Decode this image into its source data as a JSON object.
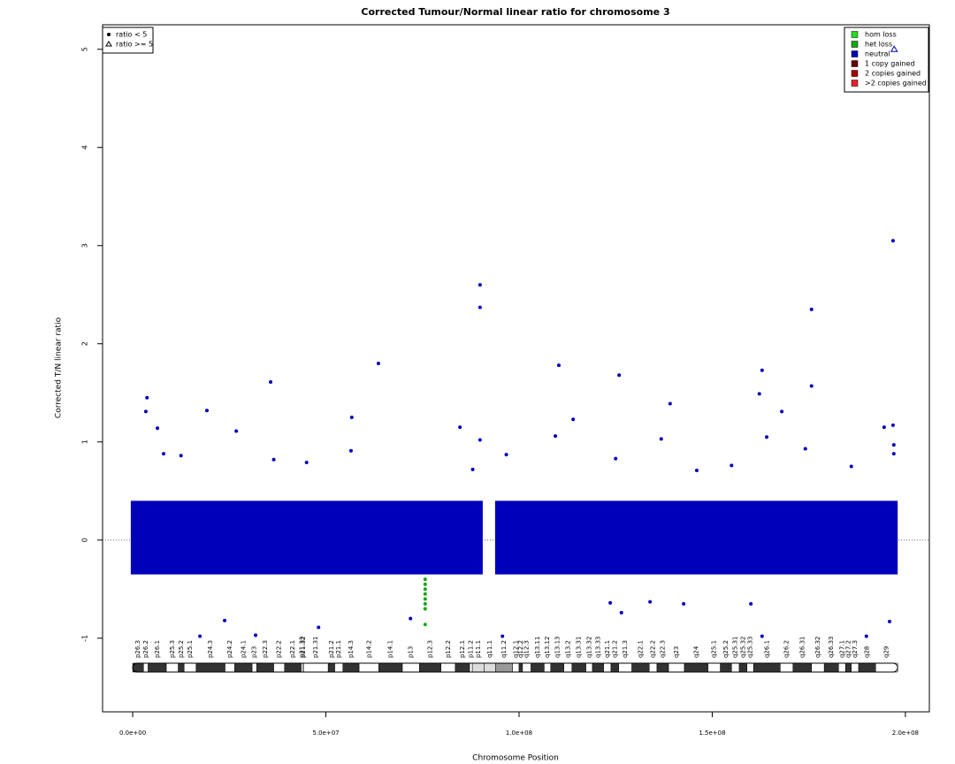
{
  "chart_data": {
    "type": "scatter",
    "title": "Corrected Tumour/Normal linear ratio for chromosome  3",
    "x_label": "Chromosome Position",
    "y_label": "Corrected T/N linear ratio",
    "xlim": [
      -7800000.0,
      206200000.0
    ],
    "ylim": [
      -1.75,
      5.25
    ],
    "xticks": [
      {
        "value": 0,
        "label": "0.0e+00"
      },
      {
        "value": 50000000.0,
        "label": "5.0e+07"
      },
      {
        "value": 100000000.0,
        "label": "1.0e+08"
      },
      {
        "value": 150000000.0,
        "label": "1.5e+08"
      },
      {
        "value": 200000000.0,
        "label": "2.0e+08"
      }
    ],
    "yticks": [
      -1,
      0,
      1,
      2,
      3,
      4,
      5
    ],
    "hline": 0,
    "series": [
      {
        "name": "hom loss",
        "color": "#22dd22",
        "x": [],
        "values": []
      },
      {
        "name": "het loss",
        "color": "#11aa11",
        "x": [
          75700000.0,
          75700000.0,
          75700000.0,
          75700000.0,
          75700000.0,
          75700000.0,
          75700000.0,
          75700000.0
        ],
        "values": [
          -0.4,
          -0.45,
          -0.5,
          -0.55,
          -0.6,
          -0.65,
          -0.7,
          -0.86
        ]
      },
      {
        "name": "neutral",
        "color": "#0000bb",
        "x": [
          3700000.0,
          3400000.0,
          6400000.0,
          35700000.0,
          26800000.0,
          19200000.0,
          56700000.0,
          63600000.0,
          84700000.0,
          89900000.0,
          89900000.0,
          89900000.0,
          110300000.0,
          114000000.0,
          125900000.0,
          139100000.0,
          136800000.0,
          109400000.0,
          175700000.0,
          175700000.0,
          162900000.0,
          162200000.0,
          168000000.0,
          196800000.0,
          196800000.0,
          194500000.0,
          164100000.0,
          174100000.0,
          71900000.0,
          23800000.0,
          48100000.0,
          31800000.0,
          17400000.0,
          95700000.0,
          123600000.0,
          126500000.0,
          133900000.0,
          142600000.0,
          160000000.0,
          162900000.0,
          195900000.0,
          189900000.0,
          8000000.0,
          12500000.0,
          36500000.0,
          45000000.0,
          56500000.0,
          88000000.0,
          96700000.0,
          125000000.0,
          146000000.0,
          155000000.0,
          186000000.0,
          197000000.0,
          197000000.0
        ],
        "values": [
          1.45,
          1.31,
          1.14,
          1.61,
          1.11,
          1.32,
          1.25,
          1.8,
          1.15,
          2.6,
          2.37,
          1.02,
          1.78,
          1.23,
          1.68,
          1.39,
          1.03,
          1.06,
          2.35,
          1.57,
          1.73,
          1.49,
          1.31,
          3.05,
          1.17,
          1.15,
          1.05,
          0.93,
          -0.8,
          -0.82,
          -0.89,
          -0.97,
          -0.98,
          -0.98,
          -0.64,
          -0.74,
          -0.63,
          -0.65,
          -0.65,
          -0.98,
          -0.83,
          -0.98,
          0.88,
          0.86,
          0.82,
          0.79,
          0.91,
          0.72,
          0.87,
          0.83,
          0.71,
          0.76,
          0.75,
          0.97,
          0.88
        ]
      },
      {
        "name": "1 copy gained",
        "color": "#660000",
        "x": [],
        "values": []
      },
      {
        "name": "2 copies gained",
        "color": "#aa0000",
        "x": [],
        "values": []
      },
      {
        "name": ">2 copies gained",
        "color": "#ee2222",
        "x": [],
        "values": []
      }
    ],
    "capped_points": {
      "color": "#0000bb",
      "x": [
        197100000.0
      ],
      "values": [
        5
      ]
    },
    "dense_region": {
      "color": "#0000bb",
      "x": [
        [
          -500000.0,
          90600000.0
        ],
        [
          93800000.0,
          198000000.0
        ]
      ],
      "values": [
        -0.35,
        0.4
      ]
    },
    "shape_legend": [
      "ratio < 5",
      "ratio >= 5"
    ],
    "bands": [
      {
        "name": "p26.3",
        "start": 0,
        "end": 2800000.0,
        "color": "#333333"
      },
      {
        "name": "p26.2",
        "start": 2800000.0,
        "end": 4000000.0,
        "color": "#ffffff"
      },
      {
        "name": "p26.1",
        "start": 4000000.0,
        "end": 8700000.0,
        "color": "#333333"
      },
      {
        "name": "p25.3",
        "start": 8700000.0,
        "end": 11800000.0,
        "color": "#ffffff"
      },
      {
        "name": "p25.2",
        "start": 11800000.0,
        "end": 13300000.0,
        "color": "#333333"
      },
      {
        "name": "p25.1",
        "start": 13300000.0,
        "end": 16400000.0,
        "color": "#ffffff"
      },
      {
        "name": "p24.3",
        "start": 16400000.0,
        "end": 23900000.0,
        "color": "#333333"
      },
      {
        "name": "p24.2",
        "start": 23900000.0,
        "end": 26400000.0,
        "color": "#ffffff"
      },
      {
        "name": "p24.1",
        "start": 26400000.0,
        "end": 30900000.0,
        "color": "#333333"
      },
      {
        "name": "p23",
        "start": 30900000.0,
        "end": 32100000.0,
        "color": "#ffffff"
      },
      {
        "name": "p22.3",
        "start": 32100000.0,
        "end": 36500000.0,
        "color": "#333333"
      },
      {
        "name": "p22.2",
        "start": 36500000.0,
        "end": 39300000.0,
        "color": "#ffffff"
      },
      {
        "name": "p22.1",
        "start": 39300000.0,
        "end": 43600000.0,
        "color": "#333333"
      },
      {
        "name": "p21.33",
        "start": 43600000.0,
        "end": 44100000.0,
        "color": "#ffffff"
      },
      {
        "name": "p21.32",
        "start": 44100000.0,
        "end": 44200000.0,
        "color": "#333333"
      },
      {
        "name": "p21.31",
        "start": 44200000.0,
        "end": 50600000.0,
        "color": "#ffffff"
      },
      {
        "name": "p21.2",
        "start": 50600000.0,
        "end": 52300000.0,
        "color": "#333333"
      },
      {
        "name": "p21.1",
        "start": 52300000.0,
        "end": 54400000.0,
        "color": "#ffffff"
      },
      {
        "name": "p14.3",
        "start": 54400000.0,
        "end": 58600000.0,
        "color": "#333333"
      },
      {
        "name": "p14.2",
        "start": 58600000.0,
        "end": 63700000.0,
        "color": "#ffffff"
      },
      {
        "name": "p14.1",
        "start": 63700000.0,
        "end": 69800000.0,
        "color": "#333333"
      },
      {
        "name": "p13",
        "start": 69800000.0,
        "end": 74200000.0,
        "color": "#ffffff"
      },
      {
        "name": "p12.3",
        "start": 74200000.0,
        "end": 79800000.0,
        "color": "#333333"
      },
      {
        "name": "p12.2",
        "start": 79800000.0,
        "end": 83500000.0,
        "color": "#ffffff"
      },
      {
        "name": "p12.1",
        "start": 83500000.0,
        "end": 87200000.0,
        "color": "#333333"
      },
      {
        "name": "p11.2",
        "start": 87200000.0,
        "end": 87900000.0,
        "color": "#ffffff"
      },
      {
        "name": "p11.1",
        "start": 87900000.0,
        "end": 91000000.0,
        "color": "#dddddd"
      },
      {
        "name": "q11.1",
        "start": 91000000.0,
        "end": 93900000.0,
        "color": "#dddddd"
      },
      {
        "name": "q11.2",
        "start": 93900000.0,
        "end": 98300000.0,
        "color": "#999999"
      },
      {
        "name": "q12.1",
        "start": 98300000.0,
        "end": 100000000.0,
        "color": "#ffffff"
      },
      {
        "name": "q12.2",
        "start": 100000000.0,
        "end": 100900000.0,
        "color": "#333333"
      },
      {
        "name": "q12.3",
        "start": 100900000.0,
        "end": 103100000.0,
        "color": "#ffffff"
      },
      {
        "name": "q13.11",
        "start": 103100000.0,
        "end": 106500000.0,
        "color": "#333333"
      },
      {
        "name": "q13.12",
        "start": 106500000.0,
        "end": 108200000.0,
        "color": "#ffffff"
      },
      {
        "name": "q13.13",
        "start": 108200000.0,
        "end": 111600000.0,
        "color": "#333333"
      },
      {
        "name": "q13.2",
        "start": 111600000.0,
        "end": 113700000.0,
        "color": "#ffffff"
      },
      {
        "name": "q13.31",
        "start": 113700000.0,
        "end": 117300000.0,
        "color": "#333333"
      },
      {
        "name": "q13.32",
        "start": 117300000.0,
        "end": 119000000.0,
        "color": "#ffffff"
      },
      {
        "name": "q13.33",
        "start": 119000000.0,
        "end": 121900000.0,
        "color": "#333333"
      },
      {
        "name": "q21.1",
        "start": 121900000.0,
        "end": 123800000.0,
        "color": "#ffffff"
      },
      {
        "name": "q21.2",
        "start": 123800000.0,
        "end": 125800000.0,
        "color": "#333333"
      },
      {
        "name": "q21.3",
        "start": 125800000.0,
        "end": 129200000.0,
        "color": "#ffffff"
      },
      {
        "name": "q22.1",
        "start": 129200000.0,
        "end": 133700000.0,
        "color": "#333333"
      },
      {
        "name": "q22.2",
        "start": 133700000.0,
        "end": 135700000.0,
        "color": "#ffffff"
      },
      {
        "name": "q22.3",
        "start": 135700000.0,
        "end": 138700000.0,
        "color": "#333333"
      },
      {
        "name": "q23",
        "start": 138700000.0,
        "end": 142800000.0,
        "color": "#ffffff"
      },
      {
        "name": "q24",
        "start": 142800000.0,
        "end": 148900000.0,
        "color": "#333333"
      },
      {
        "name": "q25.1",
        "start": 148900000.0,
        "end": 152100000.0,
        "color": "#ffffff"
      },
      {
        "name": "q25.2",
        "start": 152100000.0,
        "end": 155000000.0,
        "color": "#333333"
      },
      {
        "name": "q25.31",
        "start": 155000000.0,
        "end": 157000000.0,
        "color": "#ffffff"
      },
      {
        "name": "q25.32",
        "start": 157000000.0,
        "end": 159000000.0,
        "color": "#333333"
      },
      {
        "name": "q25.33",
        "start": 159000000.0,
        "end": 160700000.0,
        "color": "#ffffff"
      },
      {
        "name": "q26.1",
        "start": 160700000.0,
        "end": 167600000.0,
        "color": "#333333"
      },
      {
        "name": "q26.2",
        "start": 167600000.0,
        "end": 170900000.0,
        "color": "#ffffff"
      },
      {
        "name": "q26.31",
        "start": 170900000.0,
        "end": 175700000.0,
        "color": "#333333"
      },
      {
        "name": "q26.32",
        "start": 175700000.0,
        "end": 179000000.0,
        "color": "#ffffff"
      },
      {
        "name": "q26.33",
        "start": 179000000.0,
        "end": 182700000.0,
        "color": "#333333"
      },
      {
        "name": "q27.1",
        "start": 182700000.0,
        "end": 184500000.0,
        "color": "#ffffff"
      },
      {
        "name": "q27.2",
        "start": 184500000.0,
        "end": 186000000.0,
        "color": "#333333"
      },
      {
        "name": "q27.3",
        "start": 186000000.0,
        "end": 187900000.0,
        "color": "#ffffff"
      },
      {
        "name": "q28",
        "start": 187900000.0,
        "end": 192300000.0,
        "color": "#333333"
      },
      {
        "name": "q29",
        "start": 192300000.0,
        "end": 198000000.0,
        "color": "#ffffff"
      }
    ]
  }
}
